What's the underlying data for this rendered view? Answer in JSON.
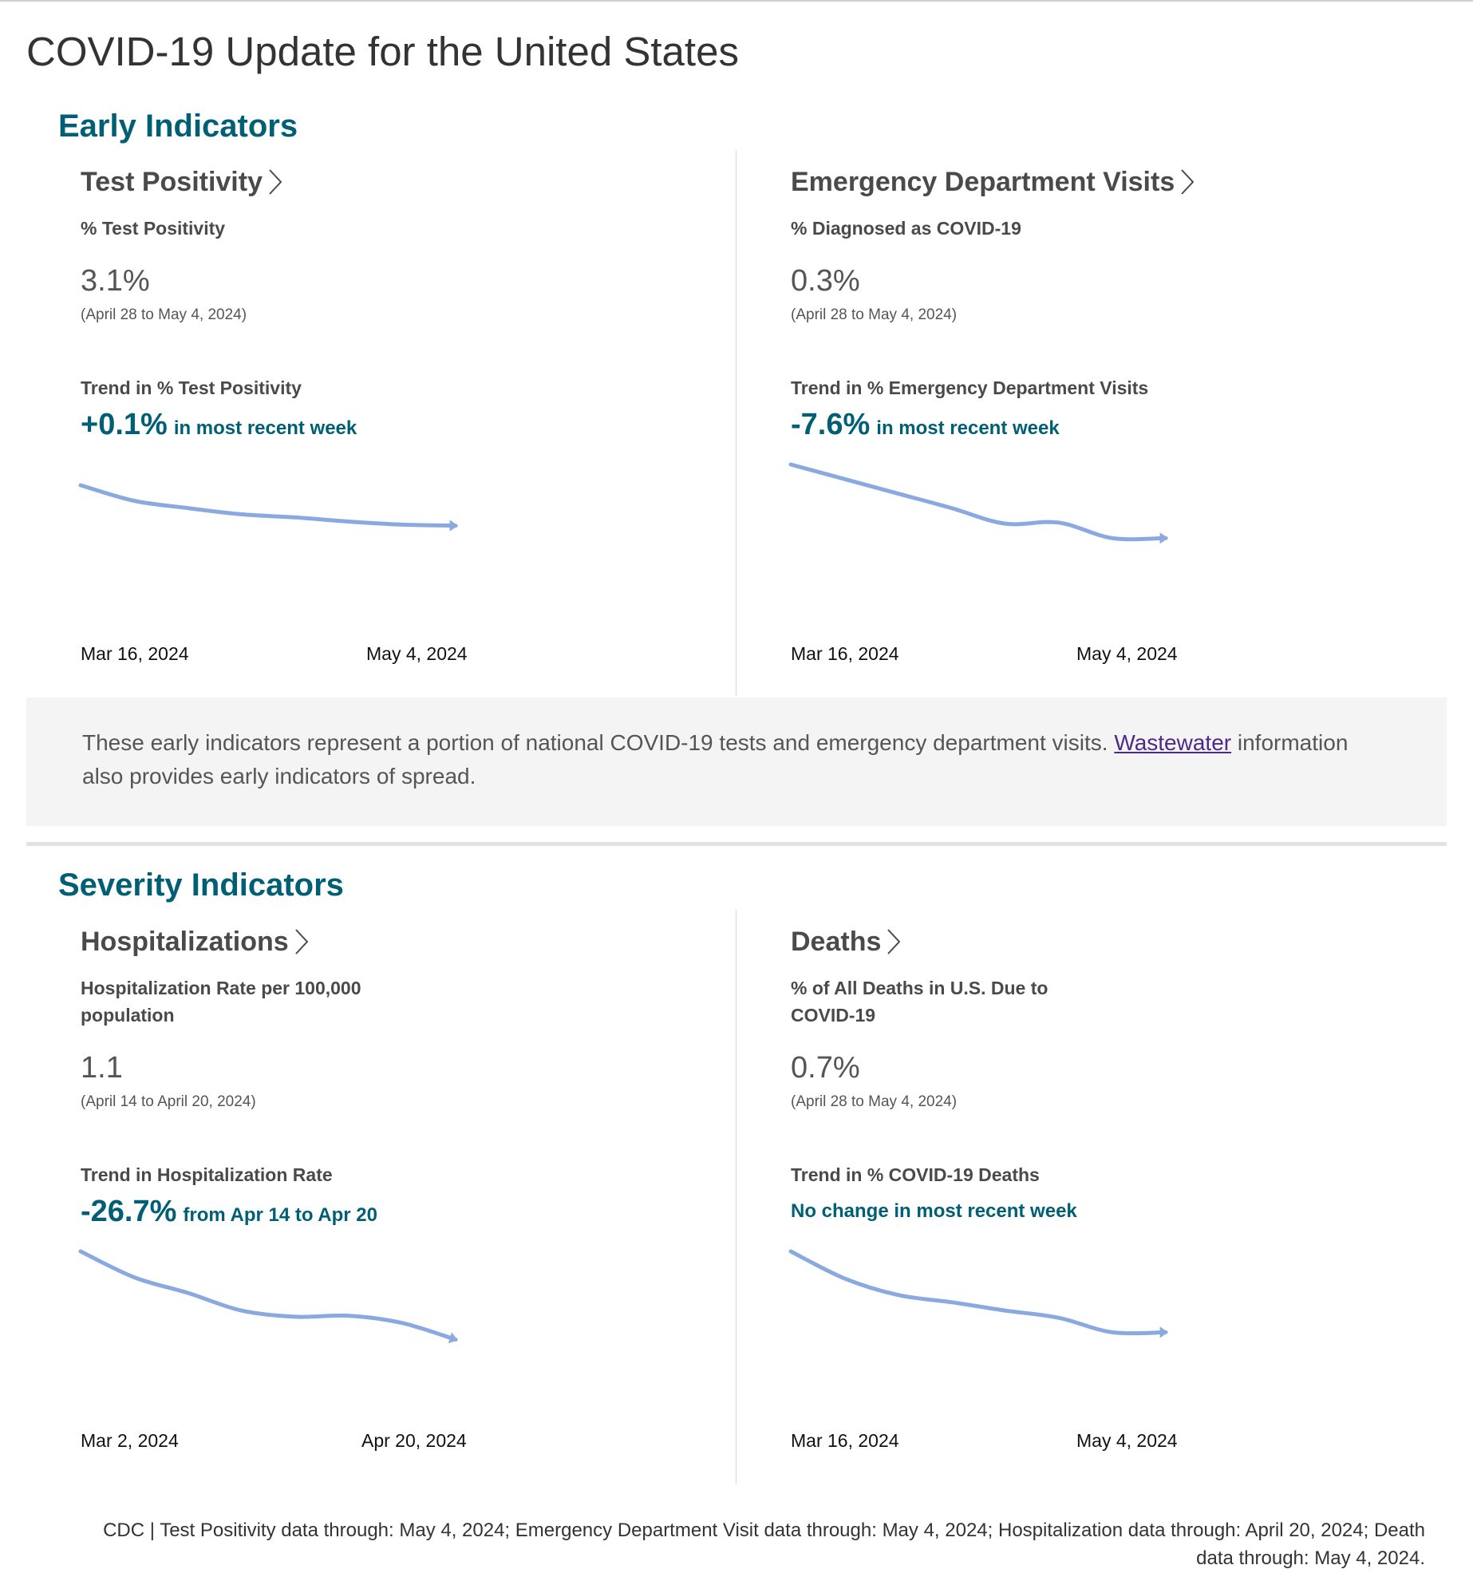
{
  "page": {
    "title": "COVID-19 Update for the United States"
  },
  "colors": {
    "heading": "#005f75",
    "sparkline": "#8aa9e0",
    "link_visited": "#4b2a8a"
  },
  "early": {
    "heading": "Early Indicators",
    "test_positivity": {
      "title": "Test Positivity",
      "metric_label": "% Test Positivity",
      "value": "3.1%",
      "range": "(April 28 to May 4, 2024)",
      "trend_label": "Trend in % Test Positivity",
      "trend_change": "+0.1%",
      "trend_desc": "in most recent week",
      "start_date": "Mar 16, 2024",
      "end_date": "May 4, 2024",
      "sparkline": [
        8.0,
        6.5,
        5.8,
        5.2,
        4.9,
        4.5,
        4.2,
        4.1
      ]
    },
    "ed_visits": {
      "title": "Emergency Department Visits",
      "metric_label": "% Diagnosed as COVID-19",
      "value": "0.3%",
      "range": "(April 28 to May 4, 2024)",
      "trend_label": "Trend in % Emergency Department Visits",
      "trend_change": "-7.6%",
      "trend_desc": "in most recent week",
      "start_date": "Mar 16, 2024",
      "end_date": "May 4, 2024",
      "sparkline": [
        10.0,
        8.6,
        7.2,
        5.8,
        4.3,
        4.4,
        2.9,
        2.9
      ]
    },
    "note": {
      "text_before": "These early indicators represent a portion of national COVID-19 tests and emergency department visits.",
      "link": "Wastewater",
      "text_after": "information also provides early indicators of spread."
    }
  },
  "severity": {
    "heading": "Severity Indicators",
    "hospitalizations": {
      "title": "Hospitalizations",
      "metric_label": "Hospitalization Rate per 100,000 population",
      "value": "1.1",
      "range": "(April 14 to April 20, 2024)",
      "trend_label": "Trend in Hospitalization Rate",
      "trend_change": "-26.7%",
      "trend_desc": "from Apr 14 to Apr 20",
      "start_date": "Mar 2, 2024",
      "end_date": "Apr 20, 2024",
      "sparkline": [
        10.0,
        7.5,
        6.0,
        4.3,
        3.7,
        3.8,
        3.1,
        1.5
      ]
    },
    "deaths": {
      "title": "Deaths",
      "metric_label": "% of All Deaths in U.S. Due to COVID-19",
      "value": "0.7%",
      "range": "(April 28 to May 4, 2024)",
      "trend_label": "Trend in % COVID-19 Deaths",
      "trend_desc_only": "No change in most recent week",
      "start_date": "Mar 16, 2024",
      "end_date": "May 4, 2024",
      "sparkline": [
        10.0,
        7.4,
        5.8,
        5.1,
        4.3,
        3.6,
        2.2,
        2.2
      ]
    }
  },
  "footer": {
    "text": "CDC | Test Positivity data through: May 4, 2024; Emergency Department Visit data through: May 4, 2024; Hospitalization data through: April 20, 2024; Death data through: May 4, 2024."
  }
}
